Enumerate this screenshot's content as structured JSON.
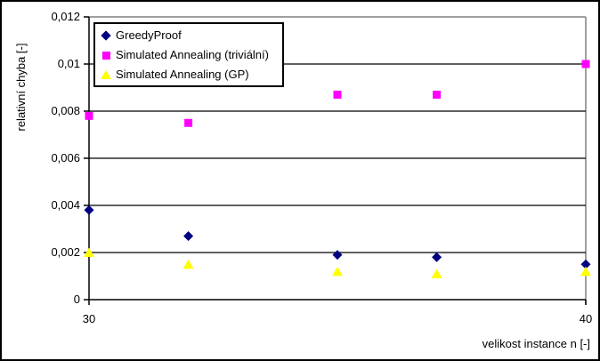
{
  "chart_data": {
    "type": "scatter",
    "title": "",
    "xlabel": "velikost instance n [-]",
    "ylabel": "relativní chyba [-]",
    "xlim": [
      30,
      40
    ],
    "ylim": [
      0,
      0.012
    ],
    "x_ticks": [
      30,
      40
    ],
    "x_tick_labels": [
      "30",
      "40"
    ],
    "y_ticks": [
      0,
      0.002,
      0.004,
      0.006,
      0.008,
      0.01,
      0.012
    ],
    "y_tick_labels": [
      "0",
      "0,002",
      "0,004",
      "0,006",
      "0,008",
      "0,01",
      "0,012"
    ],
    "grid": "horizontal",
    "grid_color": "#000000",
    "plot_border_color": "#808080",
    "background_color": "#FFFFFF",
    "legend_position": "top-left-inside",
    "x": [
      30,
      32,
      35,
      37,
      40
    ],
    "series": [
      {
        "name": "GreedyProof",
        "marker": "diamond",
        "color": "#000080",
        "values": [
          0.0038,
          0.0027,
          0.0019,
          0.0018,
          0.0015
        ]
      },
      {
        "name": "Simulated Annealing (triviální)",
        "marker": "square",
        "color": "#FF00FF",
        "values": [
          0.0078,
          0.0075,
          0.0087,
          0.0087,
          0.01
        ]
      },
      {
        "name": "Simulated Annealing (GP)",
        "marker": "triangle",
        "color": "#FFFF00",
        "values": [
          0.002,
          0.0015,
          0.0012,
          0.0011,
          0.0012
        ]
      }
    ]
  }
}
